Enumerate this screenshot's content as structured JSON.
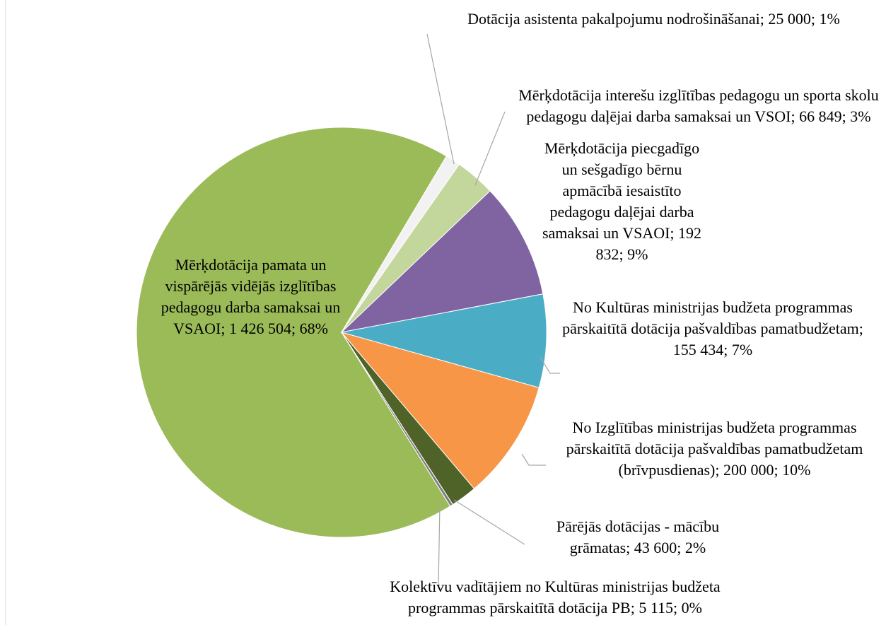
{
  "chart_data": {
    "type": "pie",
    "categories": [
      "Mērķdotācija pamata un vispārējās vidējās izglītības pedagogu darba samaksai un VSAOI",
      "Dotācija asistenta pakalpojumu nodrošināšanai",
      "Mērķdotācija interešu izglītības pedagogu un sporta skolu pedagogu daļējai darba samaksai un VSOI",
      "Mērķdotācija piecgadīgo un sešgadīgo bērnu apmācībā iesaistīto pedagogu daļējai darba samaksai un VSAOI",
      "No Kultūras ministrijas budžeta programmas pārskaitītā dotācija pašvaldības pamatbudžetam",
      "No Izglītības ministrijas budžeta programmas pārskaitītā dotācija pašvaldības pamatbudžetam (brīvpusdienas)",
      "Pārējās dotācijas - mācību grāmatas",
      "Kolektīvu vadītājiem no Kultūras ministrijas budžeta programmas pārskaitītā dotācija PB"
    ],
    "values": [
      1426504,
      25000,
      66849,
      192832,
      155434,
      200000,
      43600,
      5115
    ],
    "value_labels": [
      "1 426 504",
      "25 000",
      "66 849",
      "192 832",
      "155 434",
      "200 000",
      "43 600",
      "5 115"
    ],
    "percents": [
      68,
      1,
      3,
      9,
      7,
      10,
      2,
      0
    ],
    "percent_labels": [
      "68%",
      "1%",
      "3%",
      "9%",
      "7%",
      "10%",
      "2%",
      "0%"
    ],
    "label_separator": "; ",
    "colors": [
      "#9bbb59",
      "#f2f2f2",
      "#c3d69b",
      "#8064a2",
      "#4bacc6",
      "#f79646",
      "#4f6228",
      "#7f7f7f"
    ]
  }
}
